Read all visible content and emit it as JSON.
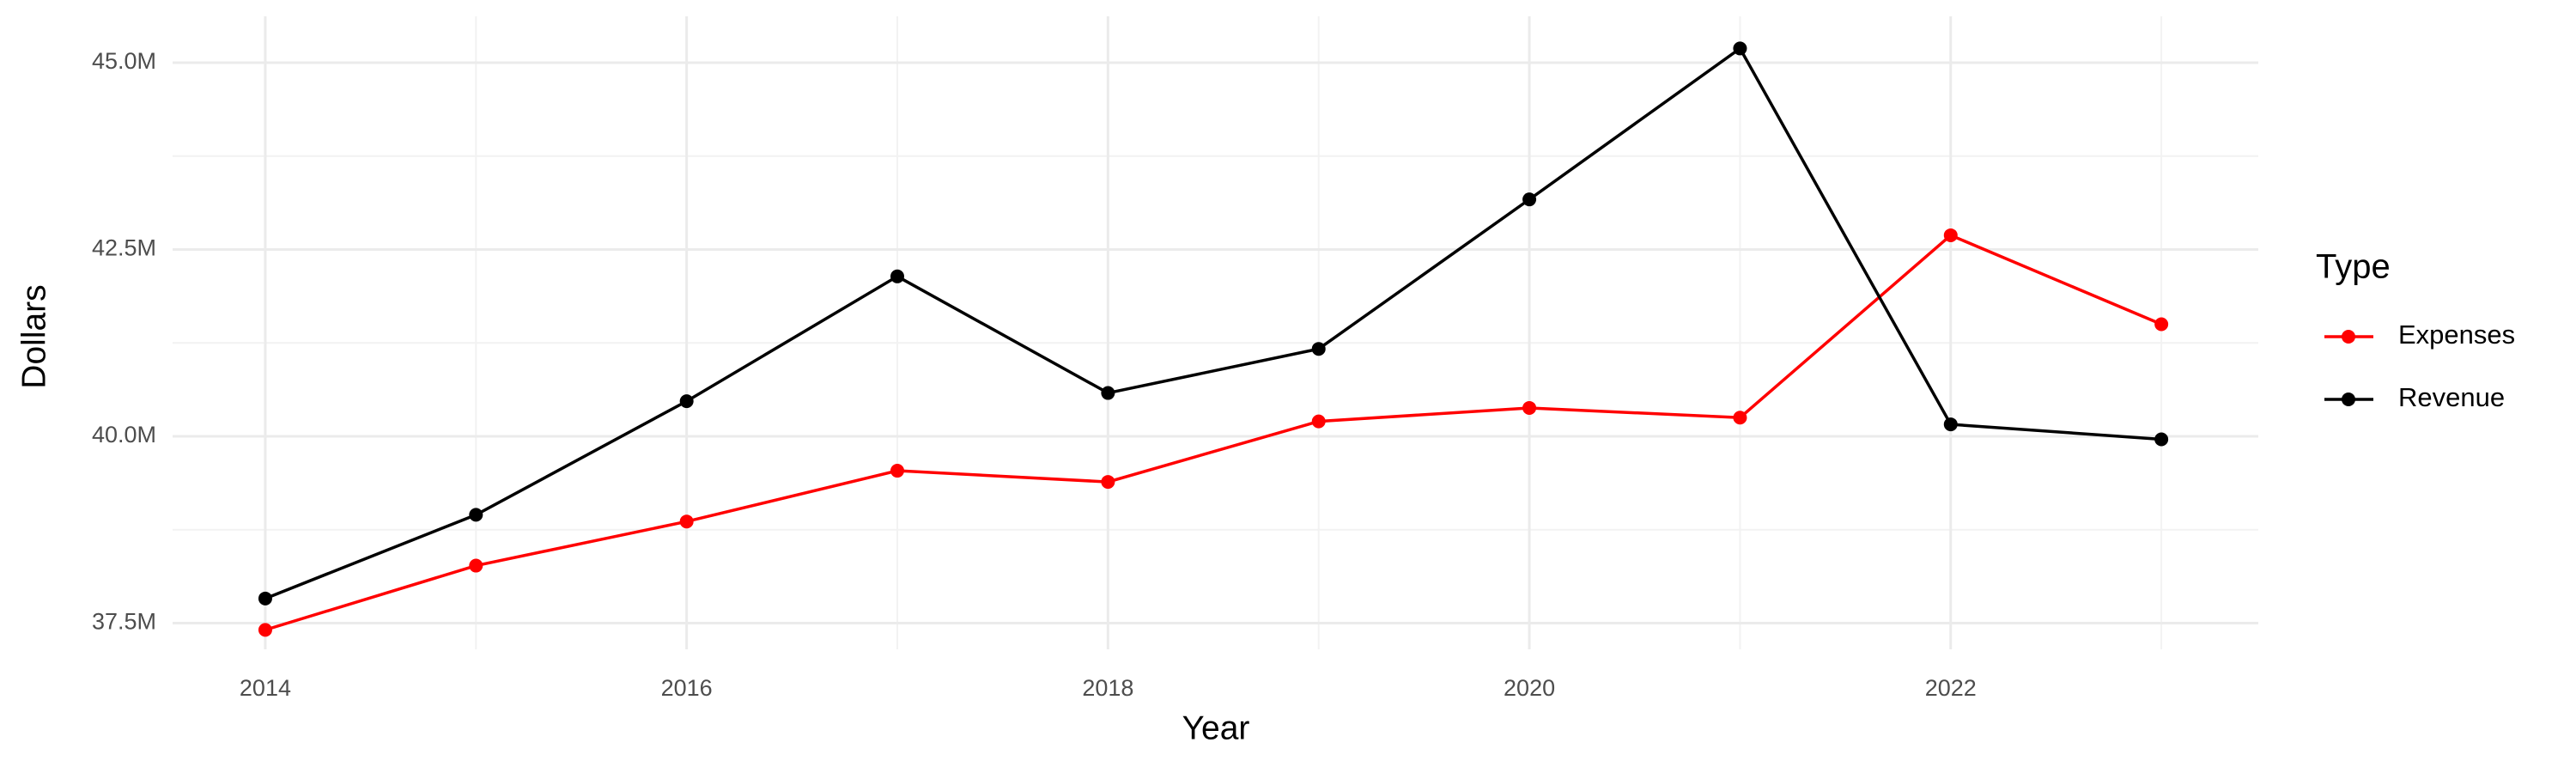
{
  "chart_data": {
    "type": "line",
    "x_label": "Year",
    "y_label": "Dollars",
    "x": [
      2014,
      2015,
      2016,
      2017,
      2018,
      2019,
      2020,
      2021,
      2022,
      2023
    ],
    "series": [
      {
        "name": "Expenses",
        "color": "#ff0000",
        "values": [
          37410000,
          38270000,
          38860000,
          39540000,
          39390000,
          40200000,
          40380000,
          40250000,
          42690000,
          41500000
        ]
      },
      {
        "name": "Revenue",
        "color": "#000000",
        "values": [
          37830000,
          38950000,
          40470000,
          42140000,
          40580000,
          41170000,
          43170000,
          45190000,
          40160000,
          39960000
        ]
      }
    ],
    "legend_title": "Type",
    "legend": "right",
    "xlim": [
      2013.56,
      2023.46
    ],
    "xticks": [
      2014,
      2016,
      2018,
      2020,
      2022
    ],
    "ylim": [
      37150000,
      45620000
    ],
    "yticks": [
      {
        "value": 37500000,
        "label": "37.5M"
      },
      {
        "value": 40000000,
        "label": "40.0M"
      },
      {
        "value": 42500000,
        "label": "42.5M"
      },
      {
        "value": 45000000,
        "label": "45.0M"
      }
    ],
    "grid": true
  }
}
